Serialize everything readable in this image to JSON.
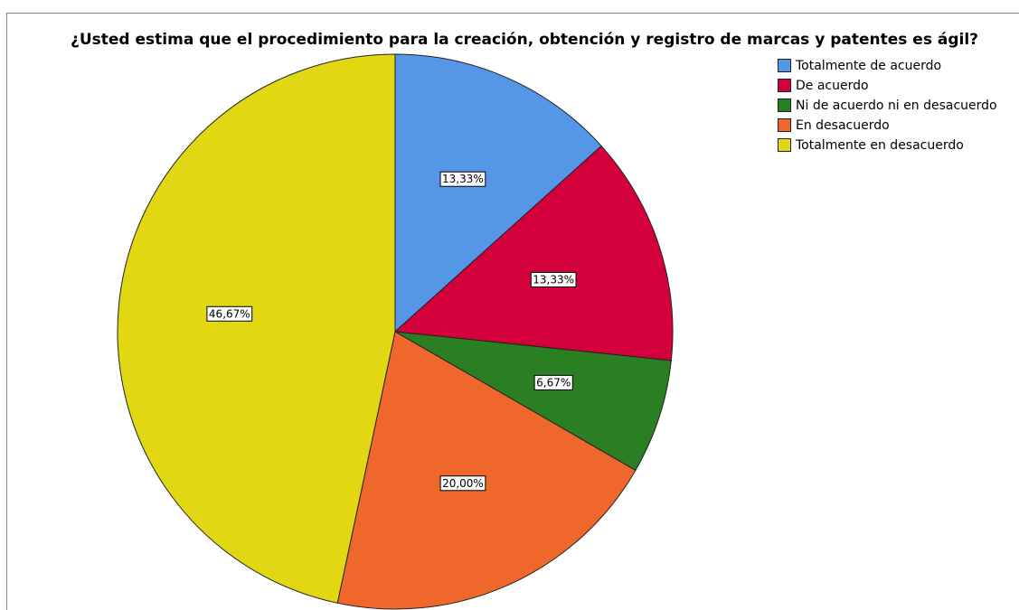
{
  "chart_data": {
    "type": "pie",
    "title": "¿Usted estima que el procedimiento para la creación, obtención y registro de marcas y patentes es ágil?",
    "categories": [
      "Totalmente de acuerdo",
      "De acuerdo",
      "Ni de acuerdo ni en desacuerdo",
      "En desacuerdo",
      "Totalmente en desacuerdo"
    ],
    "values": [
      13.33,
      13.33,
      6.67,
      20.0,
      46.67
    ],
    "value_labels": [
      "13,33%",
      "13,33%",
      "6,67%",
      "20,00%",
      "46,67%"
    ],
    "colors": [
      "#5596e6",
      "#d3003b",
      "#2a7f23",
      "#f0672c",
      "#e1d712"
    ],
    "legend": "right"
  }
}
